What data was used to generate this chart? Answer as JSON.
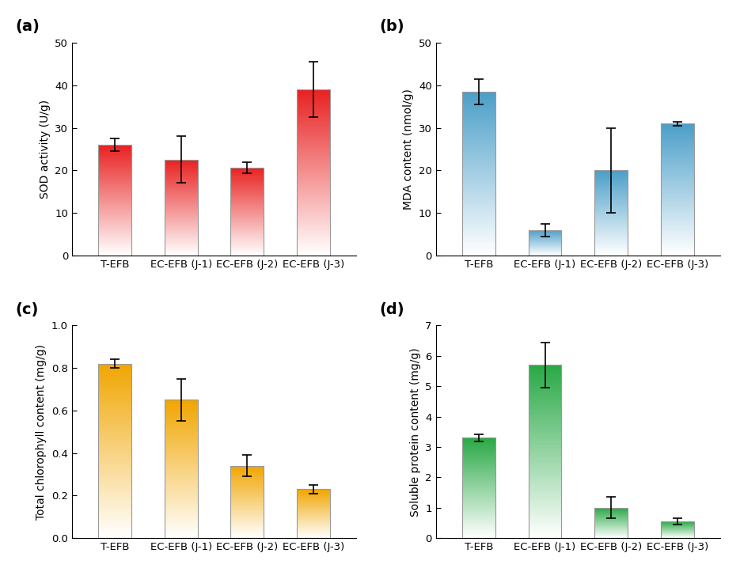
{
  "categories": [
    "T-EFB",
    "EC-EFB (J-1)",
    "EC-EFB (J-2)",
    "EC-EFB (J-3)"
  ],
  "panels": {
    "a": {
      "label": "(a)",
      "values": [
        26.0,
        22.5,
        20.7,
        39.0
      ],
      "errors": [
        1.5,
        5.5,
        1.3,
        6.5
      ],
      "ylabel": "SOD activity (U/g)",
      "ylim": [
        0,
        50
      ],
      "yticks": [
        0,
        10,
        20,
        30,
        40,
        50
      ],
      "color_top": "#e82020",
      "color_bottom": "#ffffff"
    },
    "b": {
      "label": "(b)",
      "values": [
        38.5,
        6.0,
        20.0,
        31.0
      ],
      "errors": [
        3.0,
        1.5,
        10.0,
        0.5
      ],
      "ylabel": "MDA content (nmol/g)",
      "ylim": [
        0,
        50
      ],
      "yticks": [
        0,
        10,
        20,
        30,
        40,
        50
      ],
      "color_top": "#4a9ec8",
      "color_bottom": "#ffffff"
    },
    "c": {
      "label": "(c)",
      "values": [
        0.82,
        0.65,
        0.34,
        0.23
      ],
      "errors": [
        0.02,
        0.1,
        0.05,
        0.02
      ],
      "ylabel": "Total chlorophyll content (mg/g)",
      "ylim": [
        0.0,
        1.0
      ],
      "yticks": [
        0.0,
        0.2,
        0.4,
        0.6,
        0.8,
        1.0
      ],
      "color_top": "#f0a500",
      "color_bottom": "#ffffff"
    },
    "d": {
      "label": "(d)",
      "values": [
        3.3,
        5.7,
        1.0,
        0.55
      ],
      "errors": [
        0.12,
        0.75,
        0.35,
        0.1
      ],
      "ylabel": "Soluble protein content (mg/g)",
      "ylim": [
        0,
        7
      ],
      "yticks": [
        0,
        1,
        2,
        3,
        4,
        5,
        6,
        7
      ],
      "color_top": "#28a845",
      "color_bottom": "#ffffff"
    }
  },
  "bar_width": 0.5,
  "background_color": "#ffffff",
  "tick_fontsize": 9.5,
  "label_fontsize": 10,
  "panel_label_fontsize": 14
}
